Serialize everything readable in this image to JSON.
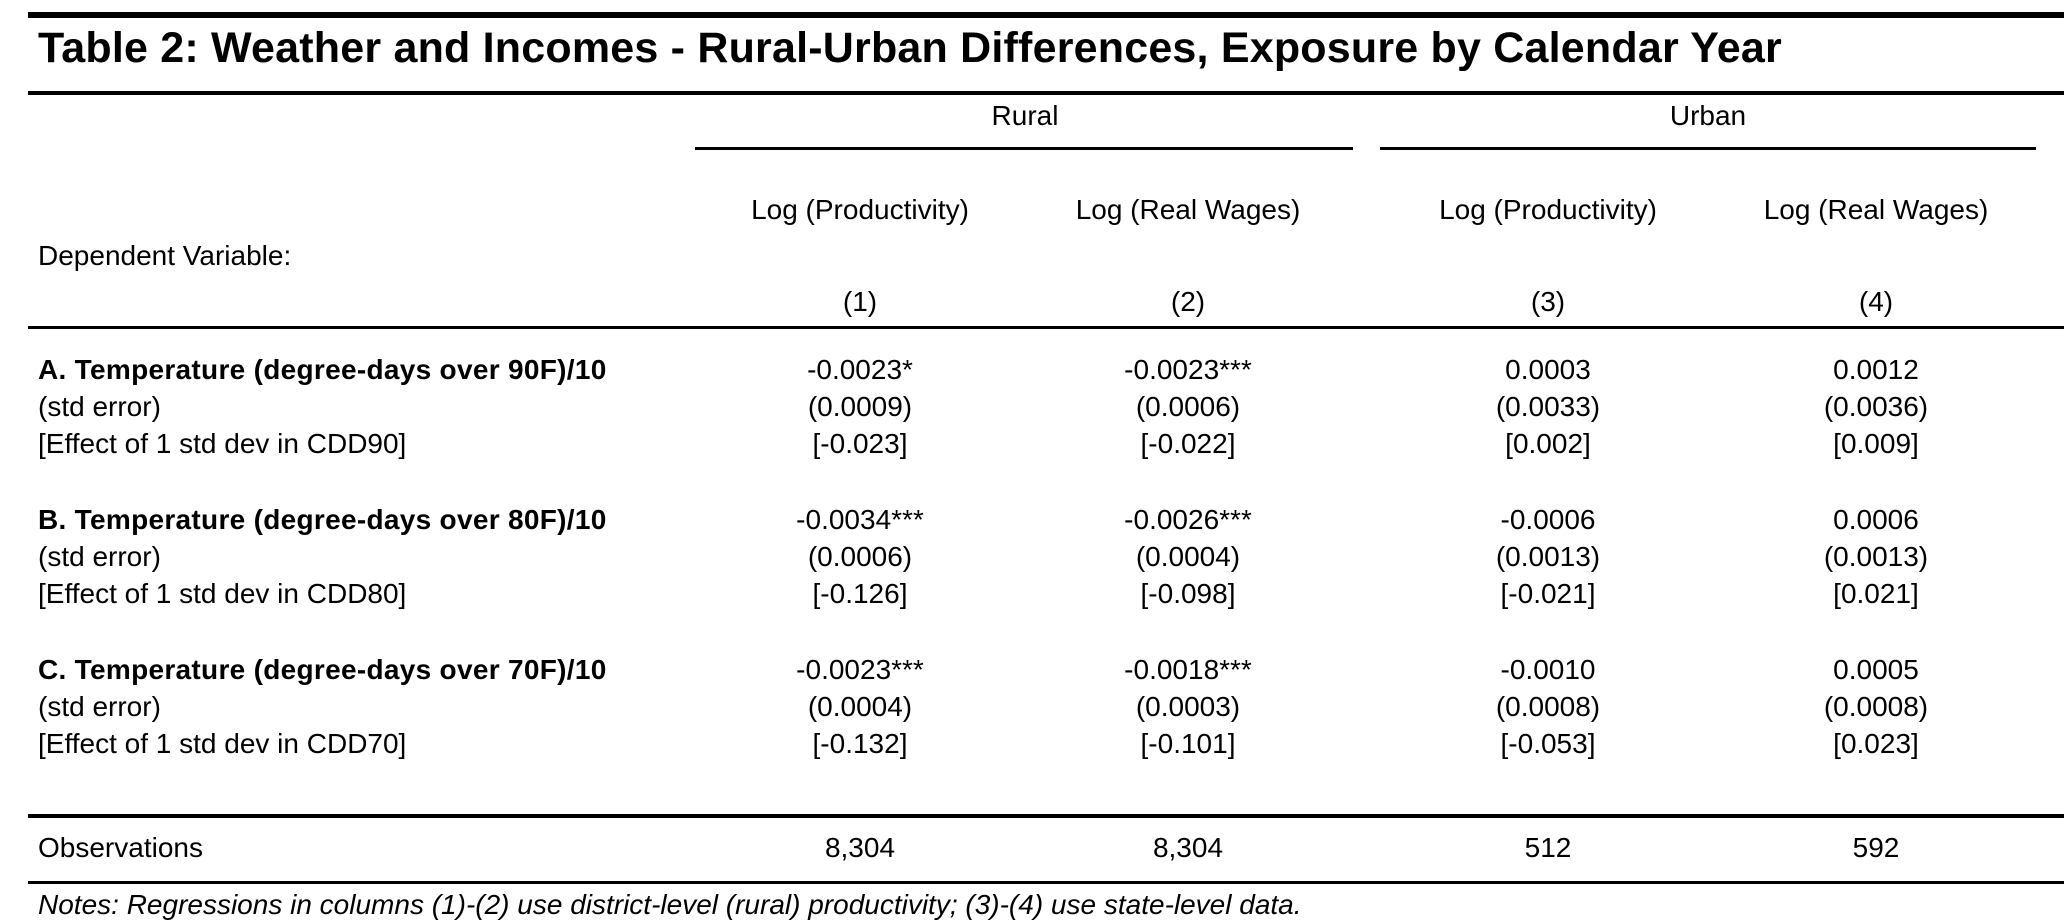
{
  "title": "Table 2: Weather and Incomes - Rural-Urban Differences, Exposure by Calendar Year",
  "groups": [
    "Rural",
    "Urban"
  ],
  "dependent_variable_label": "Dependent Variable:",
  "columns": [
    {
      "name": "Log (Productivity)",
      "number": "(1)"
    },
    {
      "name": "Log (Real Wages)",
      "number": "(2)"
    },
    {
      "name": "Log (Productivity)",
      "number": "(3)"
    },
    {
      "name": "Log (Real Wages)",
      "number": "(4)"
    }
  ],
  "panels": [
    {
      "label": "A. Temperature (degree-days over 90F)/10",
      "se_label": "(std error)",
      "effect_label": "[Effect of 1 std dev in CDD90]",
      "coef": [
        "-0.0023*",
        "-0.0023***",
        "0.0003",
        "0.0012"
      ],
      "se": [
        "(0.0009)",
        "(0.0006)",
        "(0.0033)",
        "(0.0036)"
      ],
      "effect": [
        "[-0.023]",
        "[-0.022]",
        "[0.002]",
        "[0.009]"
      ]
    },
    {
      "label": "B. Temperature (degree-days over 80F)/10",
      "se_label": "(std error)",
      "effect_label": "[Effect of 1 std dev in CDD80]",
      "coef": [
        "-0.0034***",
        "-0.0026***",
        "-0.0006",
        "0.0006"
      ],
      "se": [
        "(0.0006)",
        "(0.0004)",
        "(0.0013)",
        "(0.0013)"
      ],
      "effect": [
        "[-0.126]",
        "[-0.098]",
        "[-0.021]",
        "[0.021]"
      ]
    },
    {
      "label": "C. Temperature (degree-days over 70F)/10",
      "se_label": "(std error)",
      "effect_label": "[Effect of 1 std dev in CDD70]",
      "coef": [
        "-0.0023***",
        "-0.0018***",
        "-0.0010",
        "0.0005"
      ],
      "se": [
        "(0.0004)",
        "(0.0003)",
        "(0.0008)",
        "(0.0008)"
      ],
      "effect": [
        "[-0.132]",
        "[-0.101]",
        "[-0.053]",
        "[0.023]"
      ]
    }
  ],
  "observations": {
    "label": "Observations",
    "values": [
      "8,304",
      "8,304",
      "512",
      "592"
    ]
  },
  "note_text": "Notes: Regressions in columns (1)-(2) use district-level (rural) productivity; (3)-(4) use state-level data."
}
